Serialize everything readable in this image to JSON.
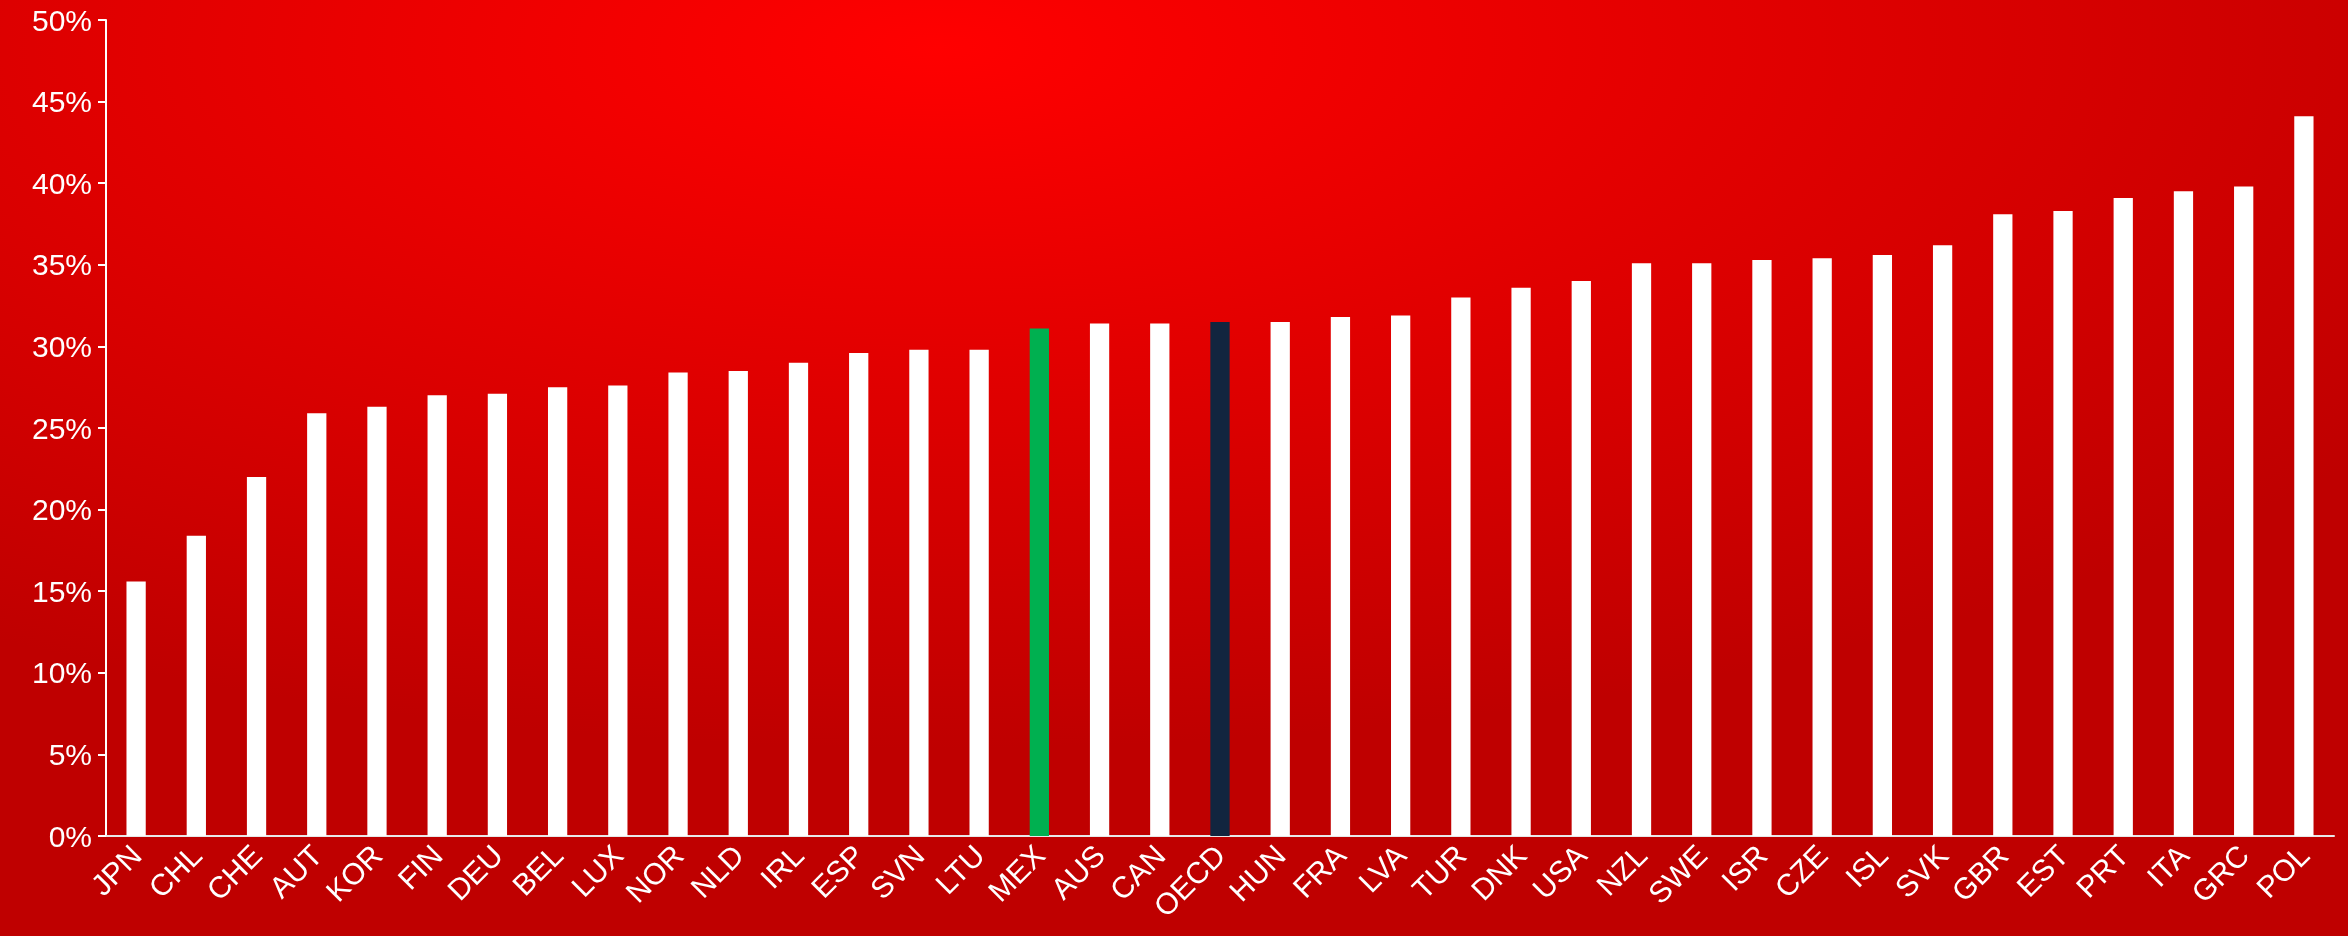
{
  "chart_data": {
    "type": "bar",
    "categories": [
      "JPN",
      "CHL",
      "CHE",
      "AUT",
      "KOR",
      "FIN",
      "DEU",
      "BEL",
      "LUX",
      "NOR",
      "NLD",
      "IRL",
      "ESP",
      "SVN",
      "LTU",
      "MEX",
      "AUS",
      "CAN",
      "OECD",
      "HUN",
      "FRA",
      "LVA",
      "TUR",
      "DNK",
      "USA",
      "NZL",
      "SWE",
      "ISR",
      "CZE",
      "ISL",
      "SVK",
      "GBR",
      "EST",
      "PRT",
      "ITA",
      "GRC",
      "POL"
    ],
    "values": [
      15.6,
      18.4,
      22.0,
      25.9,
      26.3,
      27.0,
      27.1,
      27.5,
      27.6,
      28.4,
      28.5,
      29.0,
      29.6,
      29.8,
      29.8,
      31.1,
      31.4,
      31.4,
      31.5,
      31.5,
      31.8,
      31.9,
      33.0,
      33.6,
      34.0,
      35.1,
      35.1,
      35.3,
      35.4,
      35.6,
      36.2,
      38.1,
      38.3,
      39.1,
      39.5,
      39.8,
      44.1
    ],
    "colors": [
      "#ffffff",
      "#ffffff",
      "#ffffff",
      "#ffffff",
      "#ffffff",
      "#ffffff",
      "#ffffff",
      "#ffffff",
      "#ffffff",
      "#ffffff",
      "#ffffff",
      "#ffffff",
      "#ffffff",
      "#ffffff",
      "#ffffff",
      "#00b050",
      "#ffffff",
      "#ffffff",
      "#12253f",
      "#ffffff",
      "#ffffff",
      "#ffffff",
      "#ffffff",
      "#ffffff",
      "#ffffff",
      "#ffffff",
      "#ffffff",
      "#ffffff",
      "#ffffff",
      "#ffffff",
      "#ffffff",
      "#ffffff",
      "#ffffff",
      "#ffffff",
      "#ffffff",
      "#ffffff",
      "#ffffff"
    ],
    "ylim": [
      0,
      50
    ],
    "yticks": [
      {
        "value": 0,
        "label": "0%"
      },
      {
        "value": 5,
        "label": "5%"
      },
      {
        "value": 10,
        "label": "10%"
      },
      {
        "value": 15,
        "label": "15%"
      },
      {
        "value": 20,
        "label": "20%"
      },
      {
        "value": 25,
        "label": "25%"
      },
      {
        "value": 30,
        "label": "30%"
      },
      {
        "value": 35,
        "label": "35%"
      },
      {
        "value": 40,
        "label": "40%"
      },
      {
        "value": 45,
        "label": "45%"
      },
      {
        "value": 50,
        "label": "50%"
      }
    ],
    "grid": false
  }
}
